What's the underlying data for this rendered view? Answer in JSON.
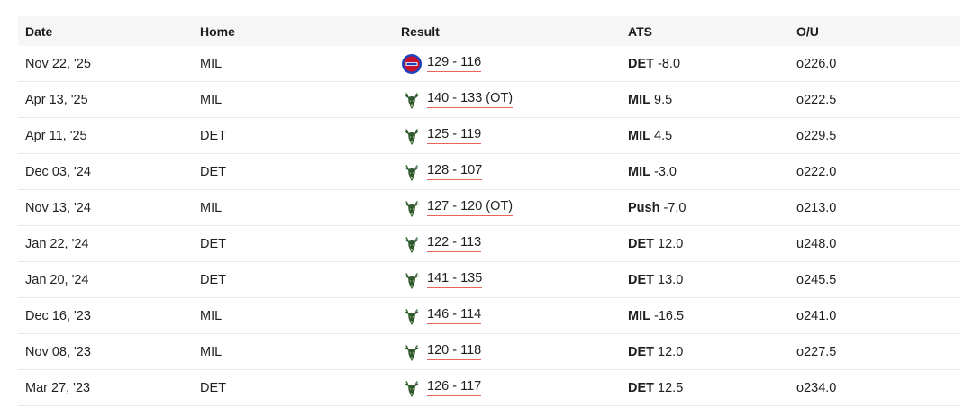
{
  "table": {
    "headers": {
      "date": "Date",
      "home": "Home",
      "result": "Result",
      "ats": "ATS",
      "ou": "O/U"
    },
    "rows": [
      {
        "date": "Nov 22, '25",
        "home": "MIL",
        "winner_logo": "pistons-logo-icon",
        "score": "129 - 116",
        "ats_team": "DET",
        "ats_line": "-8.0",
        "ou": "o226.0"
      },
      {
        "date": "Apr 13, '25",
        "home": "MIL",
        "winner_logo": "bucks-logo-icon",
        "score": "140 - 133 (OT)",
        "ats_team": "MIL",
        "ats_line": "9.5",
        "ou": "o222.5"
      },
      {
        "date": "Apr 11, '25",
        "home": "DET",
        "winner_logo": "bucks-logo-icon",
        "score": "125 - 119",
        "ats_team": "MIL",
        "ats_line": "4.5",
        "ou": "o229.5"
      },
      {
        "date": "Dec 03, '24",
        "home": "DET",
        "winner_logo": "bucks-logo-icon",
        "score": "128 - 107",
        "ats_team": "MIL",
        "ats_line": "-3.0",
        "ou": "o222.0"
      },
      {
        "date": "Nov 13, '24",
        "home": "MIL",
        "winner_logo": "bucks-logo-icon",
        "score": "127 - 120 (OT)",
        "ats_team": "Push",
        "ats_line": "-7.0",
        "ou": "o213.0"
      },
      {
        "date": "Jan 22, '24",
        "home": "DET",
        "winner_logo": "bucks-logo-icon",
        "score": "122 - 113",
        "ats_team": "DET",
        "ats_line": "12.0",
        "ou": "u248.0"
      },
      {
        "date": "Jan 20, '24",
        "home": "DET",
        "winner_logo": "bucks-logo-icon",
        "score": "141 - 135",
        "ats_team": "DET",
        "ats_line": "13.0",
        "ou": "o245.5"
      },
      {
        "date": "Dec 16, '23",
        "home": "MIL",
        "winner_logo": "bucks-logo-icon",
        "score": "146 - 114",
        "ats_team": "MIL",
        "ats_line": "-16.5",
        "ou": "o241.0"
      },
      {
        "date": "Nov 08, '23",
        "home": "MIL",
        "winner_logo": "bucks-logo-icon",
        "score": "120 - 118",
        "ats_team": "DET",
        "ats_line": "12.0",
        "ou": "o227.5"
      },
      {
        "date": "Mar 27, '23",
        "home": "DET",
        "winner_logo": "bucks-logo-icon",
        "score": "126 - 117",
        "ats_team": "DET",
        "ats_line": "12.5",
        "ou": "o234.0"
      }
    ]
  },
  "colors": {
    "header_bg": "#f6f6f6",
    "score_underline": "#e4665a",
    "bucks_green": "#2f5a2d",
    "pistons_red": "#c8102e",
    "pistons_blue": "#1d42ba"
  }
}
